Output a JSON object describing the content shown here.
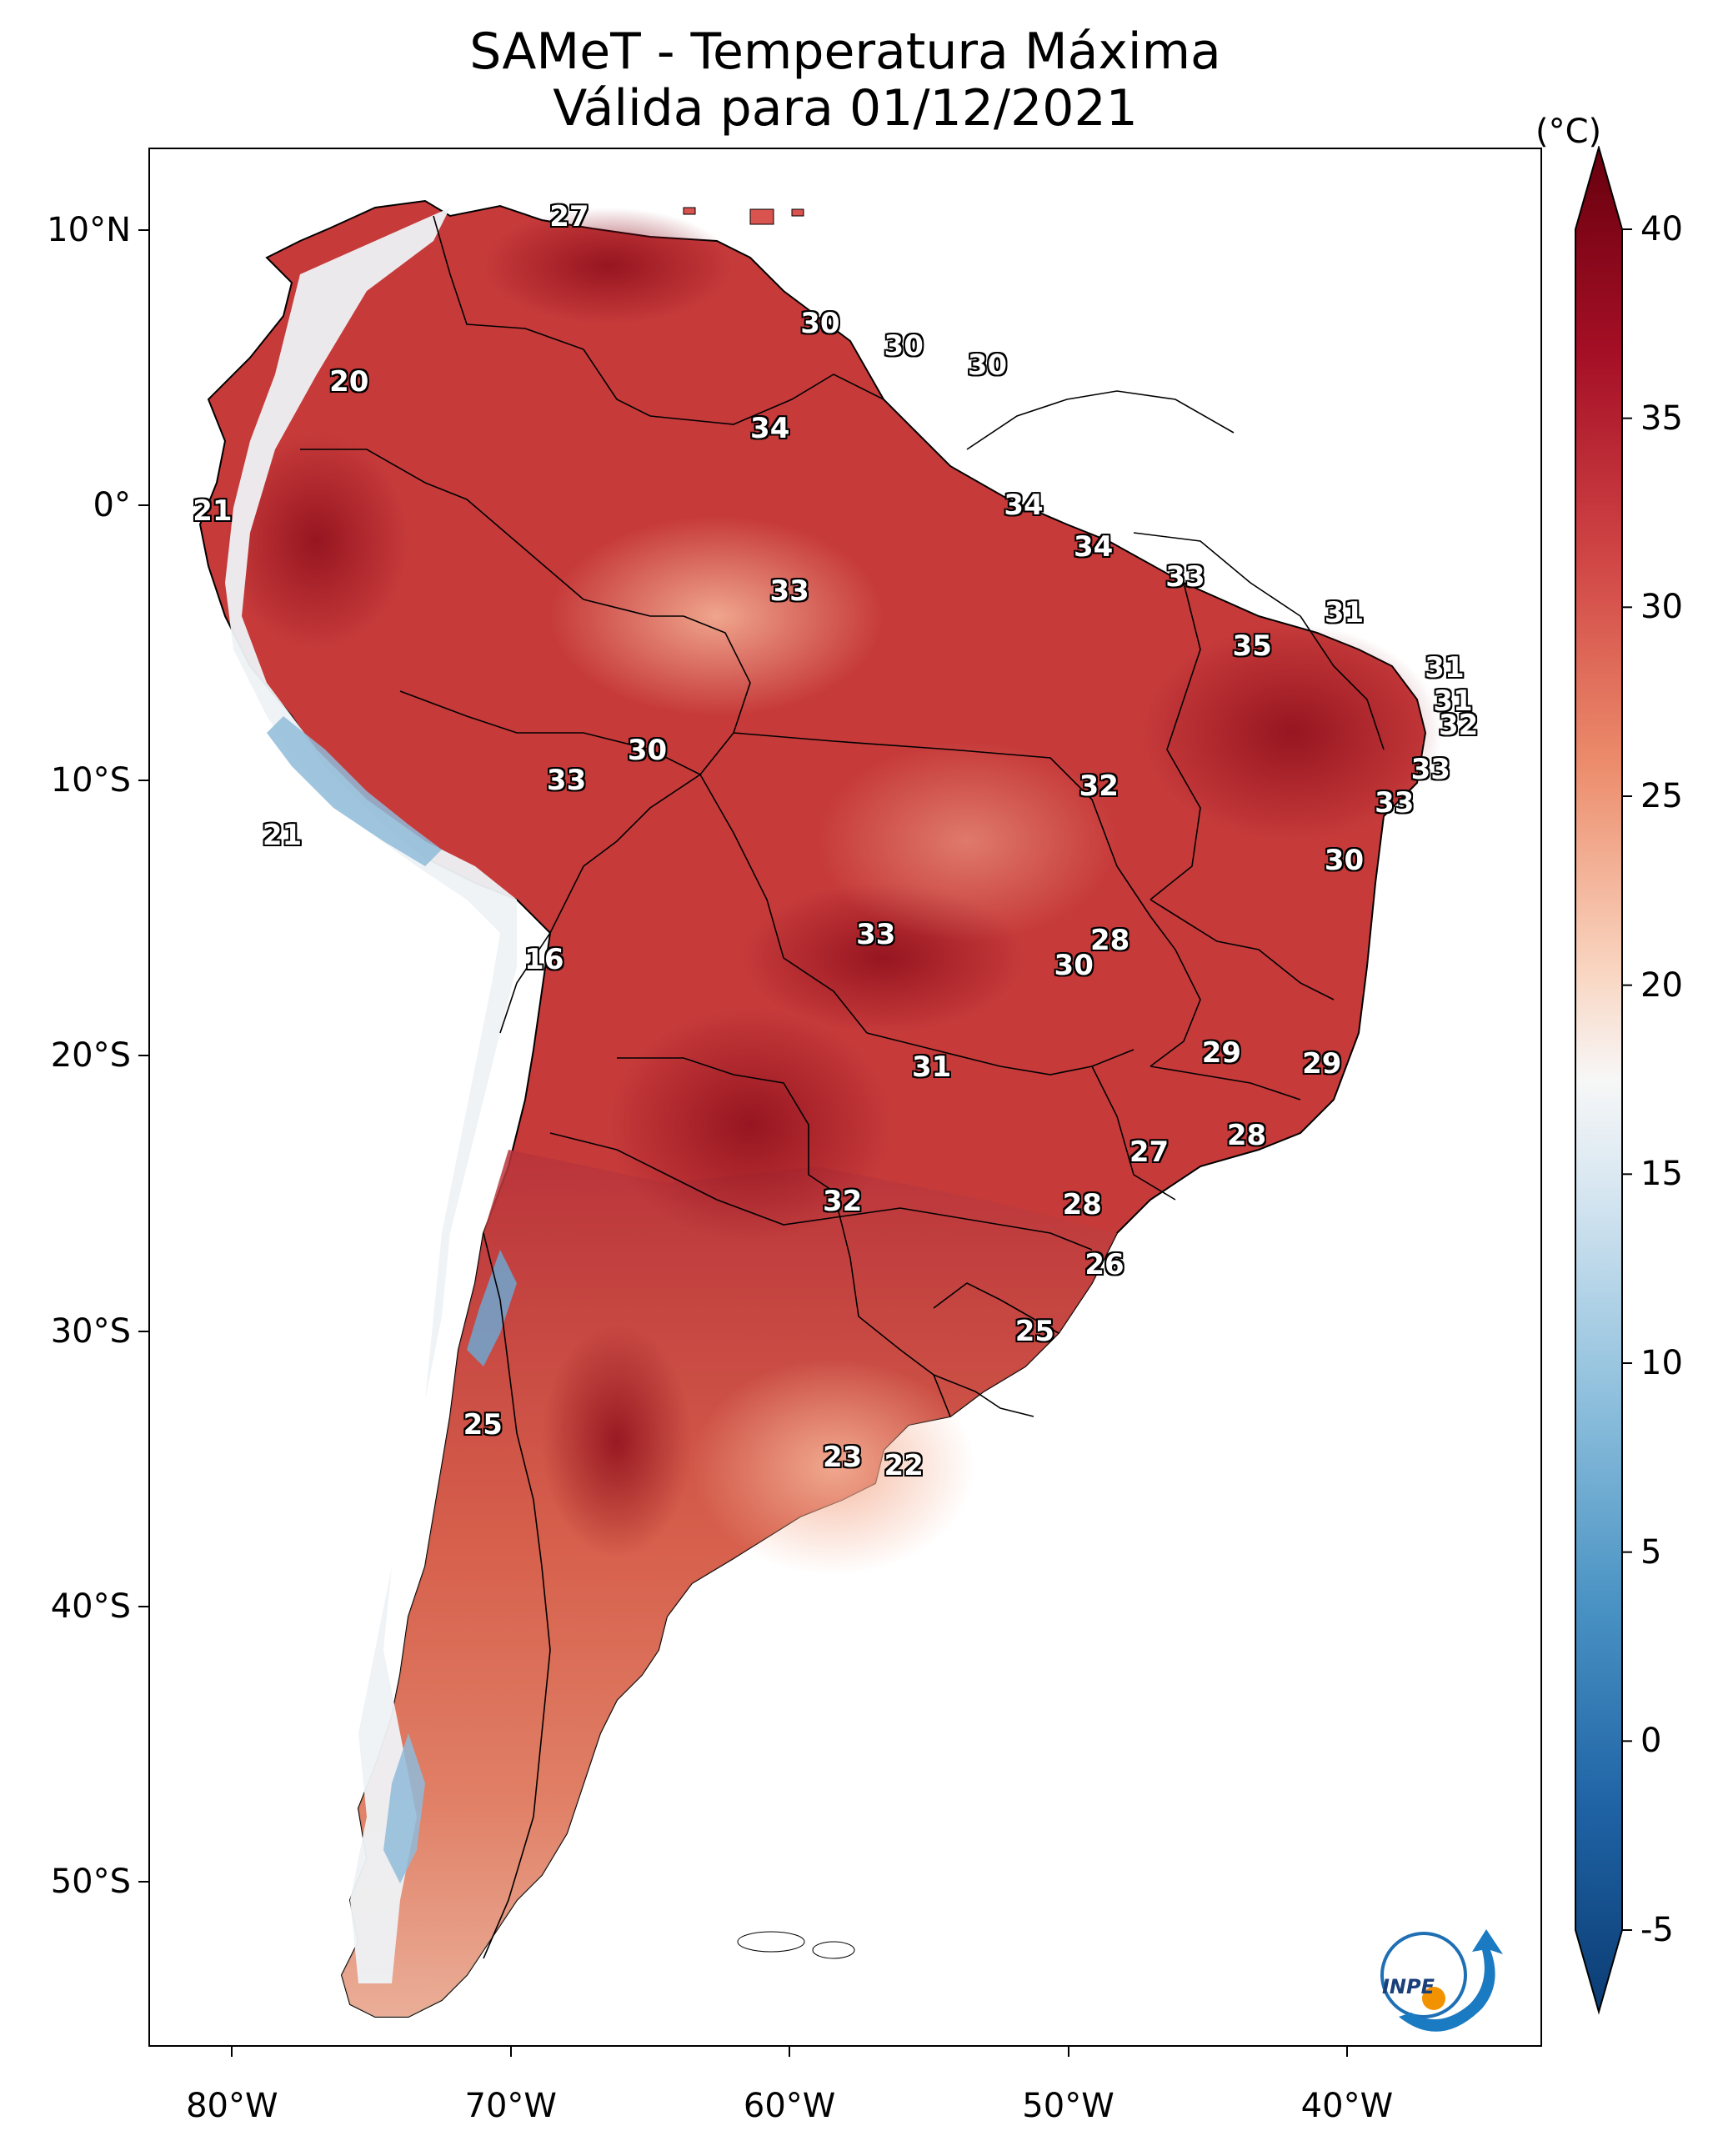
{
  "title": {
    "line1": "SAMeT - Temperatura Máxima",
    "line2": "Válida para 01/12/2021"
  },
  "axes": {
    "lat_ticks": [
      {
        "label": "10°N",
        "lat": 10
      },
      {
        "label": "0°",
        "lat": 0
      },
      {
        "label": "10°S",
        "lat": -10
      },
      {
        "label": "20°S",
        "lat": -20
      },
      {
        "label": "30°S",
        "lat": -30
      },
      {
        "label": "40°S",
        "lat": -40
      },
      {
        "label": "50°S",
        "lat": -50
      }
    ],
    "lon_ticks": [
      {
        "label": "80°W",
        "lon": -80
      },
      {
        "label": "70°W",
        "lon": -70
      },
      {
        "label": "60°W",
        "lon": -60
      },
      {
        "label": "50°W",
        "lon": -50
      },
      {
        "label": "40°W",
        "lon": -40
      }
    ],
    "lon_range": [
      -83,
      -33
    ],
    "lat_range": [
      -56,
      13
    ]
  },
  "colorbar": {
    "unit": "(°C)",
    "min": -5,
    "max": 40,
    "ticks": [
      {
        "label": "40",
        "value": 40
      },
      {
        "label": "35",
        "value": 35
      },
      {
        "label": "30",
        "value": 30
      },
      {
        "label": "25",
        "value": 25
      },
      {
        "label": "20",
        "value": 20
      },
      {
        "label": "15",
        "value": 15
      },
      {
        "label": "10",
        "value": 10
      },
      {
        "label": "5",
        "value": 5
      },
      {
        "label": "0",
        "value": 0
      },
      {
        "label": "-5",
        "value": -5
      }
    ],
    "colors": {
      "cold": "#0b3c73",
      "cool": "#4a93c4",
      "neutral": "#f7f7f7",
      "warm": "#f0a383",
      "hot": "#c23b3b",
      "extreme": "#67000d"
    }
  },
  "stations": [
    {
      "label": "27",
      "lon": -67.9,
      "lat": 10.5
    },
    {
      "label": "20",
      "lon": -75.8,
      "lat": 4.5
    },
    {
      "label": "30",
      "lon": -58.9,
      "lat": 6.6
    },
    {
      "label": "30",
      "lon": -55.9,
      "lat": 5.8
    },
    {
      "label": "30",
      "lon": -52.9,
      "lat": 5.1
    },
    {
      "label": "34",
      "lon": -60.7,
      "lat": 2.8
    },
    {
      "label": "21",
      "lon": -80.7,
      "lat": -0.2
    },
    {
      "label": "34",
      "lon": -51.6,
      "lat": 0.0
    },
    {
      "label": "34",
      "lon": -49.1,
      "lat": -1.5
    },
    {
      "label": "33",
      "lon": -60.0,
      "lat": -3.1
    },
    {
      "label": "33",
      "lon": -45.8,
      "lat": -2.6
    },
    {
      "label": "31",
      "lon": -40.1,
      "lat": -3.9
    },
    {
      "label": "35",
      "lon": -43.4,
      "lat": -5.1
    },
    {
      "label": "31",
      "lon": -36.5,
      "lat": -5.9
    },
    {
      "label": "31",
      "lon": -36.2,
      "lat": -7.1
    },
    {
      "label": "32",
      "lon": -36.0,
      "lat": -8.0
    },
    {
      "label": "30",
      "lon": -65.1,
      "lat": -8.9
    },
    {
      "label": "33",
      "lon": -68.0,
      "lat": -10.0
    },
    {
      "label": "32",
      "lon": -48.9,
      "lat": -10.2
    },
    {
      "label": "33",
      "lon": -37.0,
      "lat": -9.6
    },
    {
      "label": "33",
      "lon": -38.3,
      "lat": -10.8
    },
    {
      "label": "21",
      "lon": -78.2,
      "lat": -12.0
    },
    {
      "label": "30",
      "lon": -40.1,
      "lat": -12.9
    },
    {
      "label": "16",
      "lon": -68.8,
      "lat": -16.5
    },
    {
      "label": "33",
      "lon": -56.9,
      "lat": -15.6
    },
    {
      "label": "28",
      "lon": -48.5,
      "lat": -15.8
    },
    {
      "label": "30",
      "lon": -49.8,
      "lat": -16.7
    },
    {
      "label": "29",
      "lon": -44.5,
      "lat": -19.9
    },
    {
      "label": "29",
      "lon": -40.9,
      "lat": -20.3
    },
    {
      "label": "31",
      "lon": -54.9,
      "lat": -20.4
    },
    {
      "label": "28",
      "lon": -43.6,
      "lat": -22.9
    },
    {
      "label": "27",
      "lon": -47.1,
      "lat": -23.5
    },
    {
      "label": "32",
      "lon": -58.1,
      "lat": -25.3
    },
    {
      "label": "28",
      "lon": -49.5,
      "lat": -25.4
    },
    {
      "label": "26",
      "lon": -48.7,
      "lat": -27.6
    },
    {
      "label": "25",
      "lon": -51.2,
      "lat": -30.0
    },
    {
      "label": "25",
      "lon": -71.0,
      "lat": -33.4
    },
    {
      "label": "23",
      "lon": -58.1,
      "lat": -34.6
    },
    {
      "label": "22",
      "lon": -55.9,
      "lat": -34.9
    }
  ],
  "logo": {
    "text": "INPE",
    "name": "inpe-logo"
  }
}
